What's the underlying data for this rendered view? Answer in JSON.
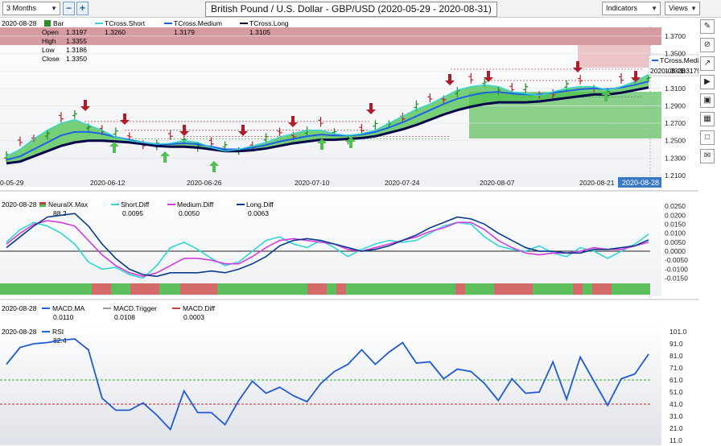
{
  "toolbar": {
    "period_select": "3 Months",
    "zoom_minus": "−",
    "zoom_plus": "+",
    "title": "British Pound / U.S. Dollar - GBP/USD (2020-05-29 - 2020-08-31)",
    "indicators_button": "Indicators",
    "views_button": "Views"
  },
  "right_tools": {
    "icons": [
      "pencil-icon",
      "prohibit-icon",
      "arrow-up-icon",
      "play-icon",
      "frame-icon",
      "grid-icon",
      "box-icon",
      "chat-icon"
    ]
  },
  "price_panel": {
    "date": "2020-08-28",
    "bar_label": "Bar",
    "ohlc": [
      {
        "label": "Open",
        "value": "1.3197"
      },
      {
        "label": "High",
        "value": "1.3355"
      },
      {
        "label": "Low",
        "value": "1.3186"
      },
      {
        "label": "Close",
        "value": "1.3350"
      }
    ],
    "tcross_short_label": "TCross.Short",
    "tcross_short_value": "1.3260",
    "tcross_medium_label": "TCross.Medium",
    "tcross_medium_value": "1.3179",
    "tcross_long_label": "TCross.Long",
    "tcross_long_value": "1.3105",
    "flag_label": "TCross.Medium",
    "flag_date": "2020-08-28",
    "flag_value": "1.3179",
    "y_ticks": [
      "1.3700",
      "1.3500",
      "1.3300",
      "1.3100",
      "1.2900",
      "1.2700",
      "1.2500",
      "1.2300",
      "1.2100"
    ],
    "x_ticks": [
      "0-05-29",
      "2020-06-12",
      "2020-06-26",
      "2020-07-10",
      "2020-07-24",
      "2020-08-07",
      "2020-08-21"
    ],
    "x_current": "2020-08-28",
    "colors": {
      "short": "#33d6d6",
      "medium": "#1e62e6",
      "long": "#06064a",
      "band": "#4cc24c",
      "resistance": "#c85a66",
      "up_arrow": "#4fbf4f",
      "down_arrow": "#b01c2a"
    }
  },
  "diff_panel": {
    "date": "2020-08-28",
    "neural_label": "NeuralX.Max",
    "neural_value": "88.3",
    "short_label": "Short.Diff",
    "short_value": "0.0095",
    "medium_label": "Medium.Diff",
    "medium_value": "0.0050",
    "long_label": "Long.Diff",
    "long_value": "0.0063",
    "y_ticks": [
      "0.0250",
      "0.0200",
      "0.0150",
      "0.0100",
      "0.0050",
      "0.0000",
      "-0.0050",
      "-0.0100",
      "-0.0150"
    ]
  },
  "macd_panel": {
    "date": "2020-08-28",
    "ma_label": "MACD.MA",
    "ma_value": "0.0110",
    "trigger_label": "MACD.Trigger",
    "trigger_value": "0.0108",
    "diff_label": "MACD.Diff",
    "diff_value": "0.0003"
  },
  "rsi_panel": {
    "date": "2020-08-28",
    "rsi_label": "RSI",
    "rsi_value": "82.4",
    "y_ticks": [
      "101.0",
      "91.0",
      "81.0",
      "71.0",
      "61.0",
      "51.0",
      "41.0",
      "31.0",
      "21.0",
      "11.0"
    ]
  },
  "chart_data": [
    {
      "type": "line",
      "title": "British Pound / U.S. Dollar - GBP/USD (2020-05-29 - 2020-08-31)",
      "ylim": [
        1.21,
        1.38
      ],
      "series": [
        {
          "name": "TCross.Short",
          "values": [
            1.232,
            1.24,
            1.252,
            1.262,
            1.27,
            1.274,
            1.268,
            1.262,
            1.254,
            1.25,
            1.248,
            1.246,
            1.247,
            1.25,
            1.248,
            1.242,
            1.238,
            1.24,
            1.244,
            1.248,
            1.254,
            1.258,
            1.262,
            1.262,
            1.258,
            1.256,
            1.258,
            1.262,
            1.27,
            1.278,
            1.286,
            1.292,
            1.3,
            1.308,
            1.312,
            1.314,
            1.312,
            1.306,
            1.304,
            1.302,
            1.306,
            1.31,
            1.312,
            1.312,
            1.308,
            1.312,
            1.318,
            1.326
          ]
        },
        {
          "name": "TCross.Medium",
          "values": [
            1.228,
            1.232,
            1.24,
            1.248,
            1.256,
            1.26,
            1.26,
            1.258,
            1.254,
            1.251,
            1.248,
            1.246,
            1.246,
            1.247,
            1.246,
            1.243,
            1.24,
            1.24,
            1.242,
            1.245,
            1.249,
            1.252,
            1.255,
            1.257,
            1.256,
            1.256,
            1.257,
            1.26,
            1.265,
            1.271,
            1.278,
            1.285,
            1.292,
            1.298,
            1.302,
            1.305,
            1.306,
            1.304,
            1.303,
            1.303,
            1.305,
            1.307,
            1.309,
            1.31,
            1.309,
            1.311,
            1.314,
            1.318
          ]
        },
        {
          "name": "TCross.Long",
          "values": [
            1.224,
            1.226,
            1.232,
            1.238,
            1.244,
            1.248,
            1.25,
            1.25,
            1.249,
            1.248,
            1.246,
            1.244,
            1.243,
            1.243,
            1.242,
            1.24,
            1.238,
            1.238,
            1.239,
            1.241,
            1.244,
            1.247,
            1.249,
            1.251,
            1.251,
            1.252,
            1.253,
            1.255,
            1.259,
            1.263,
            1.268,
            1.274,
            1.28,
            1.285,
            1.289,
            1.292,
            1.294,
            1.294,
            1.294,
            1.295,
            1.297,
            1.299,
            1.301,
            1.303,
            1.303,
            1.305,
            1.308,
            1.311
          ]
        }
      ]
    },
    {
      "type": "line",
      "ylim": [
        -0.017,
        0.026
      ],
      "series": [
        {
          "name": "Short.Diff",
          "values": [
            0.005,
            0.012,
            0.016,
            0.014,
            0.01,
            0.004,
            -0.006,
            -0.01,
            -0.009,
            -0.013,
            -0.015,
            -0.008,
            0.002,
            0.005,
            0.001,
            -0.004,
            -0.008,
            -0.006,
            0.0,
            0.006,
            0.008,
            0.004,
            0.002,
            0.006,
            0.002,
            -0.003,
            0.001,
            0.004,
            0.006,
            0.005,
            0.006,
            0.01,
            0.014,
            0.016,
            0.015,
            0.008,
            0.003,
            0.001,
            0.0,
            0.003,
            -0.001,
            -0.003,
            0.002,
            0.0,
            -0.004,
            0.0,
            0.004,
            0.0095
          ]
        },
        {
          "name": "Medium.Diff",
          "values": [
            0.004,
            0.01,
            0.015,
            0.017,
            0.016,
            0.014,
            0.006,
            -0.002,
            -0.008,
            -0.012,
            -0.014,
            -0.012,
            -0.008,
            -0.004,
            -0.004,
            -0.005,
            -0.007,
            -0.007,
            -0.003,
            0.002,
            0.006,
            0.007,
            0.006,
            0.005,
            0.004,
            0.001,
            0.0,
            0.002,
            0.004,
            0.006,
            0.008,
            0.011,
            0.013,
            0.016,
            0.016,
            0.012,
            0.006,
            0.002,
            -0.001,
            -0.002,
            -0.001,
            -0.001,
            0.0,
            0.002,
            0.001,
            0.001,
            0.003,
            0.005
          ]
        },
        {
          "name": "Long.Diff",
          "values": [
            0.002,
            0.008,
            0.014,
            0.019,
            0.02,
            0.021,
            0.014,
            0.004,
            -0.004,
            -0.01,
            -0.013,
            -0.014,
            -0.012,
            -0.012,
            -0.012,
            -0.011,
            -0.012,
            -0.01,
            -0.007,
            -0.003,
            0.003,
            0.006,
            0.007,
            0.006,
            0.004,
            0.002,
            0.0,
            0.001,
            0.003,
            0.006,
            0.009,
            0.013,
            0.016,
            0.019,
            0.018,
            0.015,
            0.01,
            0.006,
            0.002,
            0.0,
            0.0,
            -0.001,
            -0.001,
            0.001,
            0.001,
            0.002,
            0.003,
            0.0063
          ]
        }
      ]
    },
    {
      "type": "line",
      "ylim": [
        11,
        101
      ],
      "series": [
        {
          "name": "RSI",
          "values": [
            74,
            88,
            91,
            92,
            94,
            95,
            86,
            46,
            36,
            36,
            42,
            32,
            20,
            52,
            34,
            34,
            24,
            44,
            60,
            50,
            55,
            48,
            43,
            58,
            68,
            74,
            86,
            74,
            84,
            92,
            75,
            76,
            62,
            70,
            68,
            58,
            44,
            62,
            50,
            51,
            76,
            45,
            80,
            60,
            40,
            62,
            66,
            82.4
          ]
        }
      ]
    }
  ]
}
